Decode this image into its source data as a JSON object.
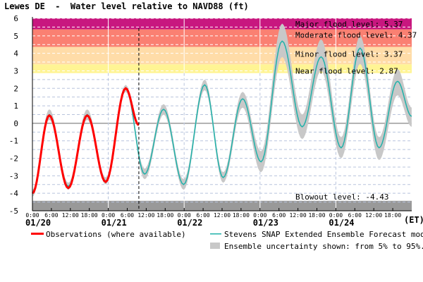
{
  "chart_data": {
    "type": "line",
    "title": "Lewes DE  -  Water level relative to NAVD88 (ft)",
    "xlabel": "(ET)",
    "ylabel": "",
    "ylim": [
      -5,
      6
    ],
    "xlim": [
      "01/20 00:00",
      "01/25 00:00"
    ],
    "yticks": [
      "6",
      "5",
      "4",
      "3",
      "2",
      "1",
      "0",
      "-1",
      "-2",
      "-3",
      "-4",
      "-5"
    ],
    "hour_ticks": [
      "0:00",
      "6:00",
      "12:00",
      "18:00"
    ],
    "date_labels": [
      "01/20",
      "01/21",
      "01/22",
      "01/23",
      "01/24"
    ],
    "grid": true,
    "now_marker": "01/21 09:40",
    "thresholds": [
      {
        "label": "Major flood level: 5.37",
        "value": 5.37,
        "upper": 6,
        "color": "#c8177f"
      },
      {
        "label": "Moderate flood level: 4.37",
        "value": 4.37,
        "upper": 5.37,
        "color": "#fa8072"
      },
      {
        "label": "Minor flood level: 3.37",
        "value": 3.37,
        "upper": 4.37,
        "color": "#ffdca8"
      },
      {
        "label": "Near flood level: 2.87",
        "value": 2.87,
        "upper": 3.37,
        "color": "#fff494"
      },
      {
        "label": "Blowout level: -4.43",
        "value": -4.43,
        "lower": -5,
        "color": "#999999"
      }
    ],
    "series": [
      {
        "name": "Observations (where available)",
        "color": "#ff0000",
        "x": [
          "01/20 00:00",
          "01/20 05:20",
          "01/20 11:20",
          "01/20 17:20",
          "01/20 23:10",
          "01/21 05:30",
          "01/21 09:40"
        ],
        "y": [
          -4.0,
          0.45,
          -3.7,
          0.45,
          -3.35,
          2.0,
          -0.1
        ]
      },
      {
        "name": "Stevens SNAP Extended Ensemble Forecast models",
        "color": "#20b2aa",
        "x": [
          "01/20 00:00",
          "01/20 05:20",
          "01/20 11:20",
          "01/20 17:20",
          "01/20 23:10",
          "01/21 05:30",
          "01/21 11:30",
          "01/21 17:30",
          "01/21 23:50",
          "01/22 06:30",
          "01/22 12:20",
          "01/22 18:30",
          "01/23 00:20",
          "01/23 07:00",
          "01/23 13:20",
          "01/23 19:20",
          "01/24 01:40",
          "01/24 07:40",
          "01/24 13:40",
          "01/24 19:30",
          "01/24 23:59"
        ],
        "y": [
          -4.0,
          0.5,
          -3.6,
          0.5,
          -3.3,
          2.0,
          -2.9,
          0.8,
          -3.5,
          2.2,
          -3.1,
          1.4,
          -2.2,
          4.7,
          -0.2,
          3.8,
          -1.4,
          4.3,
          -1.4,
          2.4,
          0.4
        ],
        "band_lower": [
          -4.2,
          0.2,
          -3.8,
          0.2,
          -3.5,
          1.8,
          -3.2,
          0.5,
          -3.8,
          1.9,
          -3.4,
          0.9,
          -2.8,
          3.8,
          -0.9,
          3.0,
          -2.0,
          3.4,
          -2.1,
          1.6,
          -0.2
        ],
        "band_upper": [
          -3.8,
          0.8,
          -3.4,
          0.8,
          -3.1,
          2.2,
          -2.6,
          1.1,
          -3.2,
          2.5,
          -2.8,
          1.8,
          -1.6,
          5.7,
          0.5,
          4.8,
          -0.8,
          5.0,
          -0.8,
          3.1,
          0.9
        ]
      }
    ],
    "legend": {
      "observations": "Observations (where available)",
      "forecast": "Stevens SNAP Extended Ensemble Forecast models",
      "uncertainty": "Ensemble uncertainty shown: from 5% to 95%.",
      "uncertainty_color": "#c8c8c8"
    }
  }
}
